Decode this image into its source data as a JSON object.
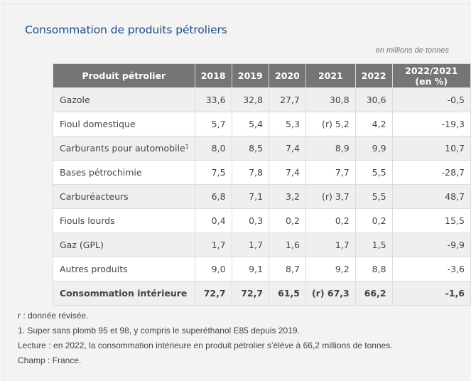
{
  "title": "Consommation de produits pétroliers",
  "unit_note": "en millions de tonnes",
  "table": {
    "headers": [
      "Produit pétrolier",
      "2018",
      "2019",
      "2020",
      "2021",
      "2022",
      "2022/2021 (en %)"
    ],
    "rows": [
      {
        "label": "Gazole",
        "sup": "",
        "values": [
          "33,6",
          "32,8",
          "27,7",
          "30,8",
          "30,6",
          "-0,5"
        ]
      },
      {
        "label": "Fioul domestique",
        "sup": "",
        "values": [
          "5,7",
          "5,4",
          "5,3",
          "(r) 5,2",
          "4,2",
          "-19,3"
        ]
      },
      {
        "label": "Carburants pour automobile",
        "sup": "1",
        "values": [
          "8,0",
          "8,5",
          "7,4",
          "8,9",
          "9,9",
          "10,7"
        ]
      },
      {
        "label": "Bases pétrochimie",
        "sup": "",
        "values": [
          "7,5",
          "7,8",
          "7,4",
          "7,7",
          "5,5",
          "-28,7"
        ]
      },
      {
        "label": "Carburéacteurs",
        "sup": "",
        "values": [
          "6,8",
          "7,1",
          "3,2",
          "(r) 3,7",
          "5,5",
          "48,7"
        ]
      },
      {
        "label": "Fiouls lourds",
        "sup": "",
        "values": [
          "0,4",
          "0,3",
          "0,2",
          "0,2",
          "0,2",
          "15,5"
        ]
      },
      {
        "label": "Gaz (GPL)",
        "sup": "",
        "values": [
          "1,7",
          "1,7",
          "1,6",
          "1,7",
          "1,5",
          "-9,9"
        ]
      },
      {
        "label": "Autres produits",
        "sup": "",
        "values": [
          "9,0",
          "9,1",
          "8,7",
          "9,2",
          "8,8",
          "-3,6"
        ]
      }
    ],
    "total": {
      "label": "Consommation intérieure",
      "values": [
        "72,7",
        "72,7",
        "61,5",
        "(r) 67,3",
        "66,2",
        "-1,6"
      ]
    }
  },
  "notes": [
    "r : donnée révisée.",
    "1. Super sans plomb 95 et 98, y compris le superéthanol E85 depuis 2019.",
    "Lecture : en 2022, la consommation intérieure en produit pétrolier s’élève à 66,2 millions de tonnes.",
    "Champ : France."
  ],
  "colors": {
    "title": "#1c4a86",
    "header_bg": "#757575",
    "row_alt_bg": "#efefef",
    "page_bg": "#f3f3f3"
  }
}
